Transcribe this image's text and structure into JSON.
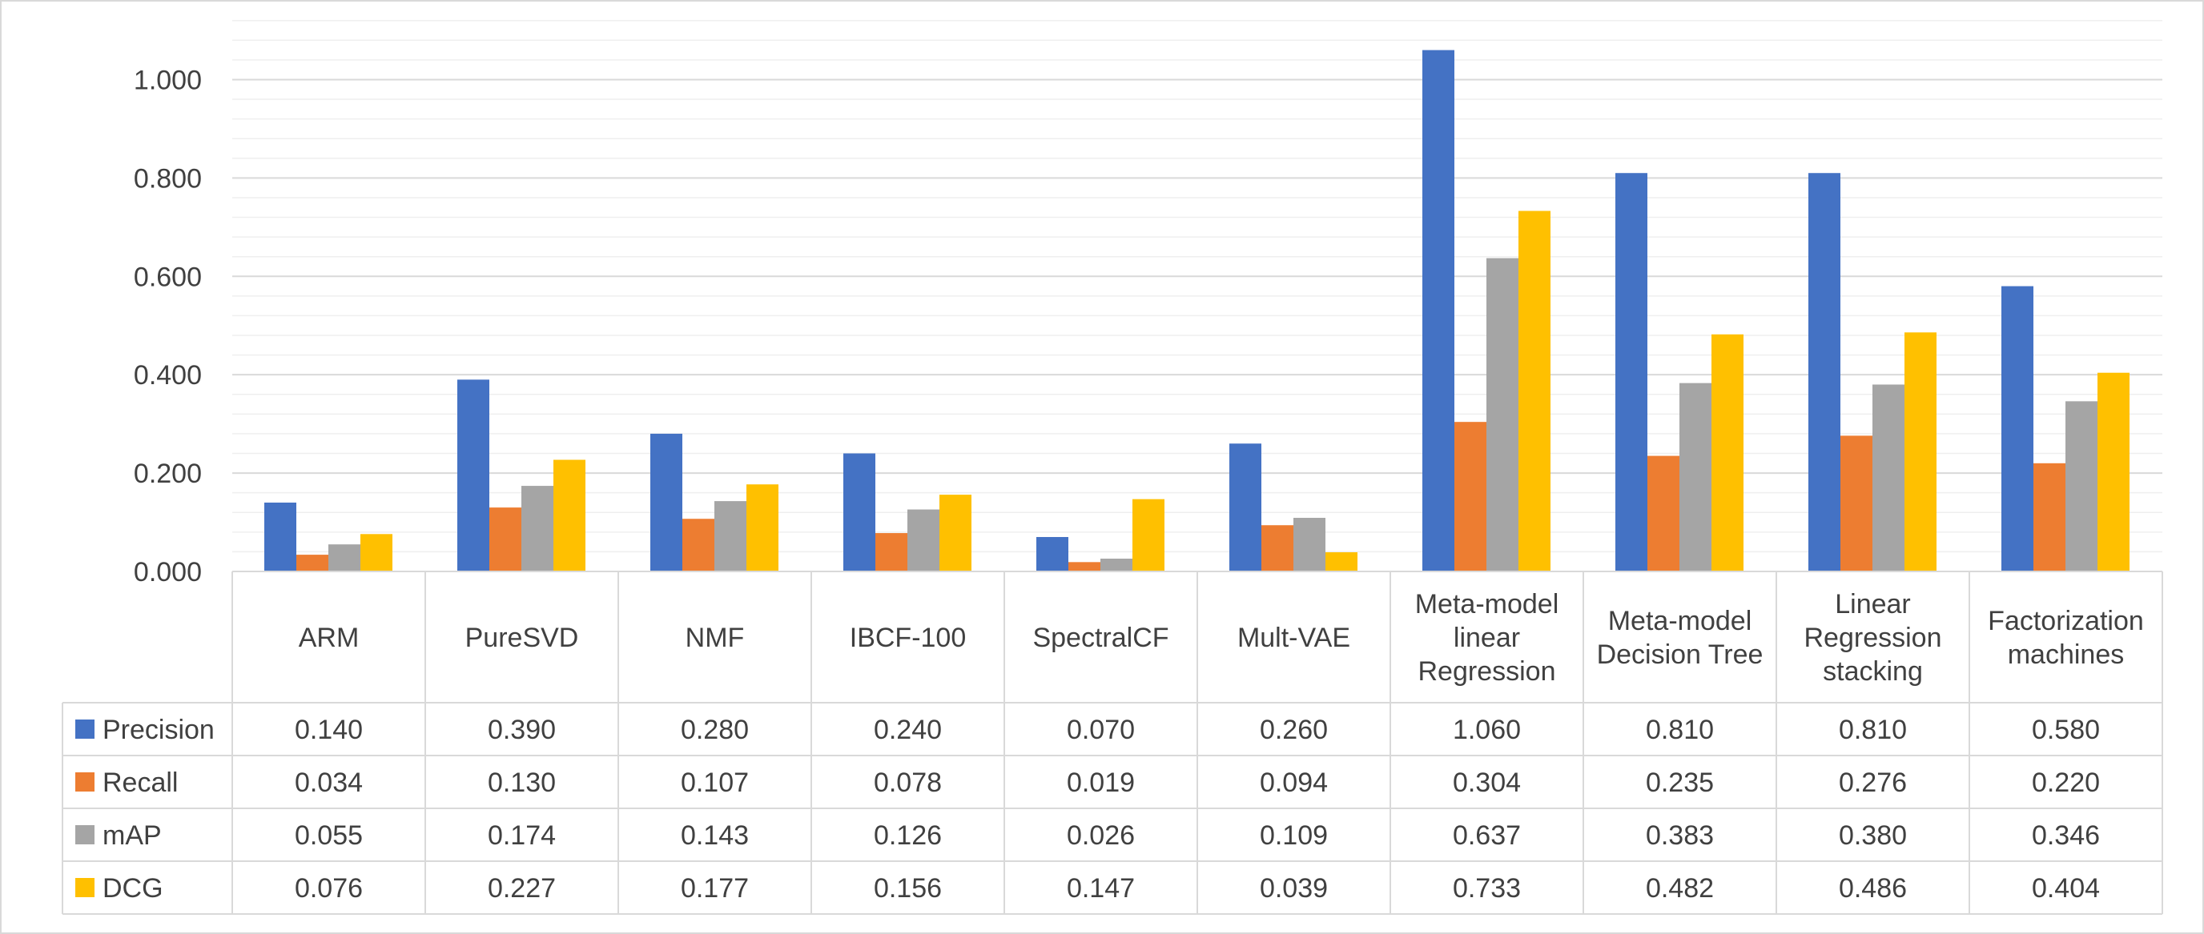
{
  "chart_data": {
    "type": "bar",
    "categories": [
      [
        "ARM"
      ],
      [
        "PureSVD"
      ],
      [
        "NMF"
      ],
      [
        "IBCF-100"
      ],
      [
        "SpectralCF"
      ],
      [
        "Mult-VAE"
      ],
      [
        "Meta-model",
        "linear",
        "Regression"
      ],
      [
        "Meta-model",
        "Decision Tree"
      ],
      [
        "Linear",
        "Regression",
        "stacking"
      ],
      [
        "Factorization",
        "machines"
      ]
    ],
    "series": [
      {
        "name": "Precision",
        "color": "#4472C4",
        "values": [
          0.14,
          0.39,
          0.28,
          0.24,
          0.07,
          0.26,
          1.06,
          0.81,
          0.81,
          0.58
        ],
        "labels": [
          "0.140",
          "0.390",
          "0.280",
          "0.240",
          "0.070",
          "0.260",
          "1.060",
          "0.810",
          "0.810",
          "0.580"
        ]
      },
      {
        "name": "Recall",
        "color": "#ED7D31",
        "values": [
          0.034,
          0.13,
          0.107,
          0.078,
          0.019,
          0.094,
          0.304,
          0.235,
          0.276,
          0.22
        ],
        "labels": [
          "0.034",
          "0.130",
          "0.107",
          "0.078",
          "0.019",
          "0.094",
          "0.304",
          "0.235",
          "0.276",
          "0.220"
        ]
      },
      {
        "name": "mAP",
        "color": "#A5A5A5",
        "values": [
          0.055,
          0.174,
          0.143,
          0.126,
          0.026,
          0.109,
          0.637,
          0.383,
          0.38,
          0.346
        ],
        "labels": [
          "0.055",
          "0.174",
          "0.143",
          "0.126",
          "0.026",
          "0.109",
          "0.637",
          "0.383",
          "0.380",
          "0.346"
        ]
      },
      {
        "name": "DCG",
        "color": "#FFC000",
        "values": [
          0.076,
          0.227,
          0.177,
          0.156,
          0.147,
          0.039,
          0.733,
          0.482,
          0.486,
          0.404
        ],
        "labels": [
          "0.076",
          "0.227",
          "0.177",
          "0.156",
          "0.147",
          "0.039",
          "0.733",
          "0.482",
          "0.486",
          "0.404"
        ]
      }
    ],
    "y_ticks": [
      "0.000",
      "0.200",
      "0.400",
      "0.600",
      "0.800",
      "1.000"
    ],
    "ylim": [
      0,
      1.1
    ],
    "y_major_step": 0.2,
    "y_minor_step": 0.04,
    "grid": true,
    "legend": "data-table-left",
    "data_table": true
  }
}
